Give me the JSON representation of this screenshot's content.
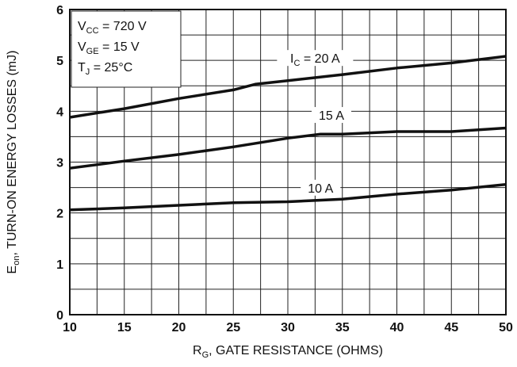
{
  "chart_data": {
    "type": "line",
    "title": "",
    "xlabel": {
      "main": "R",
      "sub": "G",
      "rest": ", GATE RESISTANCE (OHMS)"
    },
    "ylabel": {
      "main": "E",
      "sub": "on",
      "rest": ", TURN-ON ENERGY LOSSES (mJ)"
    },
    "xlim": [
      10,
      50
    ],
    "ylim": [
      0,
      6
    ],
    "xticks": [
      "10",
      "15",
      "20",
      "25",
      "30",
      "35",
      "40",
      "45",
      "50"
    ],
    "yticks": [
      "0",
      "1",
      "2",
      "3",
      "4",
      "5",
      "6"
    ],
    "grid": true,
    "conditions": [
      {
        "main": "V",
        "sub": "CC",
        "rest": " = 720 V"
      },
      {
        "main": "V",
        "sub": "GE",
        "rest": " = 15 V"
      },
      {
        "main": "T",
        "sub": "J",
        "rest": " = 25°C"
      }
    ],
    "series": [
      {
        "name": "I_C = 20 A",
        "label": {
          "main": "I",
          "sub": "C",
          "rest": " = 20 A"
        },
        "x": [
          10,
          15,
          20,
          25,
          27,
          30,
          35,
          40,
          45,
          50
        ],
        "y": [
          3.88,
          4.05,
          4.25,
          4.42,
          4.53,
          4.6,
          4.72,
          4.85,
          4.95,
          5.08
        ]
      },
      {
        "name": "15 A",
        "label": {
          "main": "15 A",
          "sub": "",
          "rest": ""
        },
        "x": [
          10,
          15,
          20,
          25,
          30,
          33,
          35,
          40,
          45,
          50
        ],
        "y": [
          2.88,
          3.02,
          3.15,
          3.3,
          3.47,
          3.55,
          3.55,
          3.6,
          3.6,
          3.67
        ]
      },
      {
        "name": "10 A",
        "label": {
          "main": "10 A",
          "sub": "",
          "rest": ""
        },
        "x": [
          10,
          15,
          20,
          25,
          30,
          35,
          40,
          45,
          50
        ],
        "y": [
          2.06,
          2.1,
          2.15,
          2.2,
          2.22,
          2.27,
          2.37,
          2.45,
          2.56
        ]
      }
    ]
  }
}
